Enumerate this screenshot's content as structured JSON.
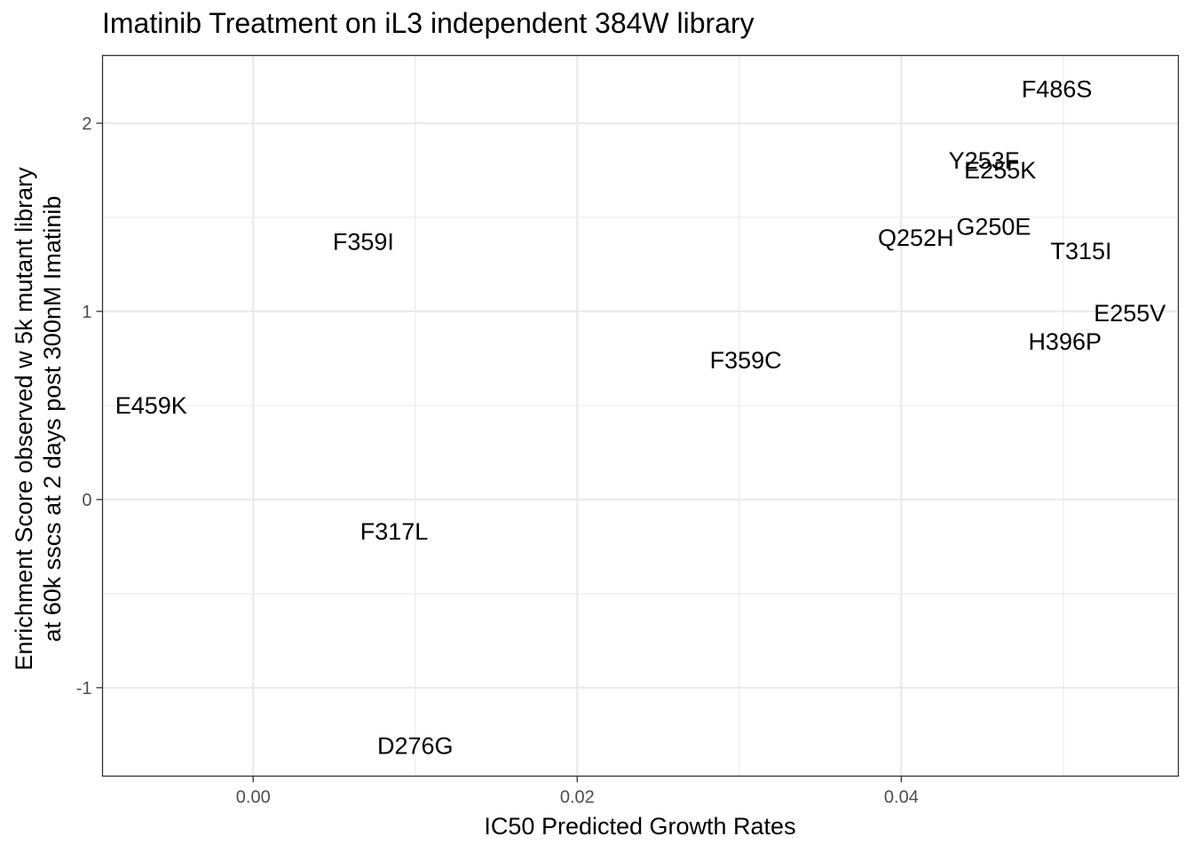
{
  "chart_data": {
    "type": "scatter",
    "title": "Imatinib Treatment on iL3 independent 384W library",
    "xlabel": "IC50 Predicted Growth Rates",
    "ylabel_lines": [
      "Enrichment Score observed w 5k mutant library",
      "at 60k sscs at 2 days post 300nM Imatinib"
    ],
    "xlim": [
      -0.0093,
      0.0571
    ],
    "ylim": [
      -1.47,
      2.36
    ],
    "x_ticks": [
      0.0,
      0.02,
      0.04
    ],
    "x_tick_labels": [
      "0.00",
      "0.02",
      "0.04"
    ],
    "y_ticks": [
      2,
      1,
      0,
      -1
    ],
    "y_tick_labels": [
      "2",
      "1",
      "0",
      "-1"
    ],
    "x_minor_grid": [
      -0.01,
      0.01,
      0.03,
      0.05
    ],
    "y_minor_grid": [
      1.5,
      0.5,
      -0.5
    ],
    "grid": true,
    "points": [
      {
        "label": "F486S",
        "x": 0.0496,
        "y": 2.18
      },
      {
        "label": "Y253F",
        "x": 0.0451,
        "y": 1.8
      },
      {
        "label": "E255K",
        "x": 0.0461,
        "y": 1.75
      },
      {
        "label": "G250E",
        "x": 0.0457,
        "y": 1.45
      },
      {
        "label": "Q252H",
        "x": 0.0409,
        "y": 1.39
      },
      {
        "label": "T315I",
        "x": 0.0511,
        "y": 1.32
      },
      {
        "label": "F359I",
        "x": 0.0068,
        "y": 1.37
      },
      {
        "label": "E255V",
        "x": 0.0541,
        "y": 0.99
      },
      {
        "label": "H396P",
        "x": 0.0501,
        "y": 0.84
      },
      {
        "label": "F359C",
        "x": 0.0304,
        "y": 0.74
      },
      {
        "label": "E459K",
        "x": -0.0063,
        "y": 0.5
      },
      {
        "label": "F317L",
        "x": 0.0087,
        "y": -0.17
      },
      {
        "label": "D276G",
        "x": 0.01,
        "y": -1.31
      }
    ]
  }
}
